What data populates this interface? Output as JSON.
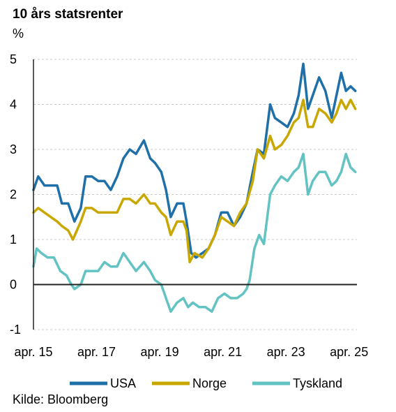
{
  "chart_data": {
    "type": "line",
    "title": "10 års statsrenter",
    "ylabel": "%",
    "xlabel": "",
    "ylim": [
      -1,
      5
    ],
    "yticks": [
      -1,
      0,
      1,
      2,
      3,
      4,
      5
    ],
    "xlim": [
      2015.25,
      2025.5
    ],
    "xticks": [
      {
        "x": 2015.25,
        "label": "apr. 15"
      },
      {
        "x": 2017.25,
        "label": "apr. 17"
      },
      {
        "x": 2019.25,
        "label": "apr. 19"
      },
      {
        "x": 2021.25,
        "label": "apr. 21"
      },
      {
        "x": 2023.25,
        "label": "apr. 23"
      },
      {
        "x": 2025.25,
        "label": "apr. 25"
      }
    ],
    "grid": "horizontal dashed",
    "legend_position": "bottom",
    "series": [
      {
        "name": "USA",
        "color": "#1f6fa8",
        "points": [
          [
            2015.25,
            2.1
          ],
          [
            2015.4,
            2.4
          ],
          [
            2015.6,
            2.2
          ],
          [
            2015.8,
            2.2
          ],
          [
            2016.0,
            2.2
          ],
          [
            2016.15,
            1.8
          ],
          [
            2016.35,
            1.8
          ],
          [
            2016.55,
            1.4
          ],
          [
            2016.75,
            1.7
          ],
          [
            2016.9,
            2.4
          ],
          [
            2017.1,
            2.4
          ],
          [
            2017.3,
            2.3
          ],
          [
            2017.5,
            2.3
          ],
          [
            2017.7,
            2.1
          ],
          [
            2017.9,
            2.4
          ],
          [
            2018.1,
            2.8
          ],
          [
            2018.3,
            3.0
          ],
          [
            2018.5,
            2.9
          ],
          [
            2018.75,
            3.2
          ],
          [
            2018.95,
            2.8
          ],
          [
            2019.1,
            2.7
          ],
          [
            2019.3,
            2.5
          ],
          [
            2019.45,
            2.1
          ],
          [
            2019.6,
            1.5
          ],
          [
            2019.8,
            1.8
          ],
          [
            2020.0,
            1.8
          ],
          [
            2020.1,
            1.4
          ],
          [
            2020.25,
            0.7
          ],
          [
            2020.4,
            0.6
          ],
          [
            2020.6,
            0.7
          ],
          [
            2020.8,
            0.8
          ],
          [
            2021.0,
            1.1
          ],
          [
            2021.2,
            1.6
          ],
          [
            2021.4,
            1.6
          ],
          [
            2021.6,
            1.3
          ],
          [
            2021.8,
            1.5
          ],
          [
            2022.0,
            1.8
          ],
          [
            2022.2,
            2.5
          ],
          [
            2022.35,
            3.0
          ],
          [
            2022.55,
            2.9
          ],
          [
            2022.75,
            4.0
          ],
          [
            2022.9,
            3.7
          ],
          [
            2023.1,
            3.6
          ],
          [
            2023.3,
            3.5
          ],
          [
            2023.5,
            3.8
          ],
          [
            2023.65,
            4.2
          ],
          [
            2023.8,
            4.9
          ],
          [
            2023.95,
            3.9
          ],
          [
            2024.1,
            4.2
          ],
          [
            2024.3,
            4.6
          ],
          [
            2024.5,
            4.3
          ],
          [
            2024.7,
            3.7
          ],
          [
            2024.85,
            4.2
          ],
          [
            2025.0,
            4.7
          ],
          [
            2025.15,
            4.3
          ],
          [
            2025.3,
            4.4
          ],
          [
            2025.45,
            4.3
          ]
        ]
      },
      {
        "name": "Norge",
        "color": "#c8a800",
        "points": [
          [
            2015.25,
            1.6
          ],
          [
            2015.4,
            1.7
          ],
          [
            2015.6,
            1.6
          ],
          [
            2015.8,
            1.5
          ],
          [
            2016.0,
            1.4
          ],
          [
            2016.15,
            1.3
          ],
          [
            2016.35,
            1.2
          ],
          [
            2016.5,
            1.0
          ],
          [
            2016.75,
            1.4
          ],
          [
            2016.9,
            1.7
          ],
          [
            2017.1,
            1.7
          ],
          [
            2017.3,
            1.6
          ],
          [
            2017.5,
            1.6
          ],
          [
            2017.7,
            1.6
          ],
          [
            2017.9,
            1.6
          ],
          [
            2018.1,
            1.9
          ],
          [
            2018.3,
            1.9
          ],
          [
            2018.5,
            1.8
          ],
          [
            2018.75,
            2.0
          ],
          [
            2018.95,
            1.8
          ],
          [
            2019.1,
            1.8
          ],
          [
            2019.3,
            1.6
          ],
          [
            2019.45,
            1.5
          ],
          [
            2019.6,
            1.1
          ],
          [
            2019.8,
            1.4
          ],
          [
            2020.0,
            1.4
          ],
          [
            2020.1,
            1.2
          ],
          [
            2020.2,
            0.5
          ],
          [
            2020.35,
            0.7
          ],
          [
            2020.6,
            0.6
          ],
          [
            2020.8,
            0.8
          ],
          [
            2021.0,
            1.1
          ],
          [
            2021.2,
            1.5
          ],
          [
            2021.4,
            1.4
          ],
          [
            2021.6,
            1.3
          ],
          [
            2021.8,
            1.6
          ],
          [
            2022.0,
            1.8
          ],
          [
            2022.2,
            2.3
          ],
          [
            2022.35,
            3.0
          ],
          [
            2022.55,
            2.8
          ],
          [
            2022.75,
            3.3
          ],
          [
            2022.9,
            3.0
          ],
          [
            2023.1,
            3.1
          ],
          [
            2023.3,
            3.3
          ],
          [
            2023.5,
            3.6
          ],
          [
            2023.65,
            3.7
          ],
          [
            2023.8,
            4.1
          ],
          [
            2023.95,
            3.5
          ],
          [
            2024.1,
            3.5
          ],
          [
            2024.3,
            3.9
          ],
          [
            2024.5,
            3.8
          ],
          [
            2024.7,
            3.6
          ],
          [
            2024.85,
            3.8
          ],
          [
            2025.0,
            4.1
          ],
          [
            2025.15,
            3.9
          ],
          [
            2025.3,
            4.1
          ],
          [
            2025.45,
            3.9
          ]
        ]
      },
      {
        "name": "Tyskland",
        "color": "#63c2c2",
        "points": [
          [
            2015.25,
            0.4
          ],
          [
            2015.35,
            0.8
          ],
          [
            2015.5,
            0.7
          ],
          [
            2015.7,
            0.6
          ],
          [
            2015.9,
            0.6
          ],
          [
            2016.1,
            0.3
          ],
          [
            2016.3,
            0.2
          ],
          [
            2016.45,
            0.0
          ],
          [
            2016.55,
            -0.1
          ],
          [
            2016.75,
            0.0
          ],
          [
            2016.9,
            0.3
          ],
          [
            2017.1,
            0.3
          ],
          [
            2017.3,
            0.3
          ],
          [
            2017.5,
            0.5
          ],
          [
            2017.7,
            0.4
          ],
          [
            2017.9,
            0.4
          ],
          [
            2018.1,
            0.7
          ],
          [
            2018.3,
            0.5
          ],
          [
            2018.5,
            0.3
          ],
          [
            2018.75,
            0.5
          ],
          [
            2018.95,
            0.3
          ],
          [
            2019.1,
            0.1
          ],
          [
            2019.3,
            0.0
          ],
          [
            2019.45,
            -0.3
          ],
          [
            2019.6,
            -0.6
          ],
          [
            2019.8,
            -0.4
          ],
          [
            2020.0,
            -0.3
          ],
          [
            2020.15,
            -0.5
          ],
          [
            2020.3,
            -0.4
          ],
          [
            2020.5,
            -0.5
          ],
          [
            2020.7,
            -0.5
          ],
          [
            2020.9,
            -0.6
          ],
          [
            2021.1,
            -0.3
          ],
          [
            2021.3,
            -0.2
          ],
          [
            2021.5,
            -0.3
          ],
          [
            2021.7,
            -0.3
          ],
          [
            2021.9,
            -0.2
          ],
          [
            2022.0,
            -0.1
          ],
          [
            2022.1,
            0.1
          ],
          [
            2022.25,
            0.8
          ],
          [
            2022.4,
            1.1
          ],
          [
            2022.55,
            0.9
          ],
          [
            2022.75,
            2.0
          ],
          [
            2022.9,
            2.2
          ],
          [
            2023.1,
            2.4
          ],
          [
            2023.3,
            2.3
          ],
          [
            2023.5,
            2.5
          ],
          [
            2023.65,
            2.6
          ],
          [
            2023.8,
            2.9
          ],
          [
            2023.95,
            2.0
          ],
          [
            2024.1,
            2.3
          ],
          [
            2024.3,
            2.5
          ],
          [
            2024.5,
            2.5
          ],
          [
            2024.7,
            2.2
          ],
          [
            2024.85,
            2.3
          ],
          [
            2025.0,
            2.5
          ],
          [
            2025.15,
            2.9
          ],
          [
            2025.3,
            2.6
          ],
          [
            2025.45,
            2.5
          ]
        ]
      }
    ]
  },
  "source": "Kilde: Bloomberg"
}
